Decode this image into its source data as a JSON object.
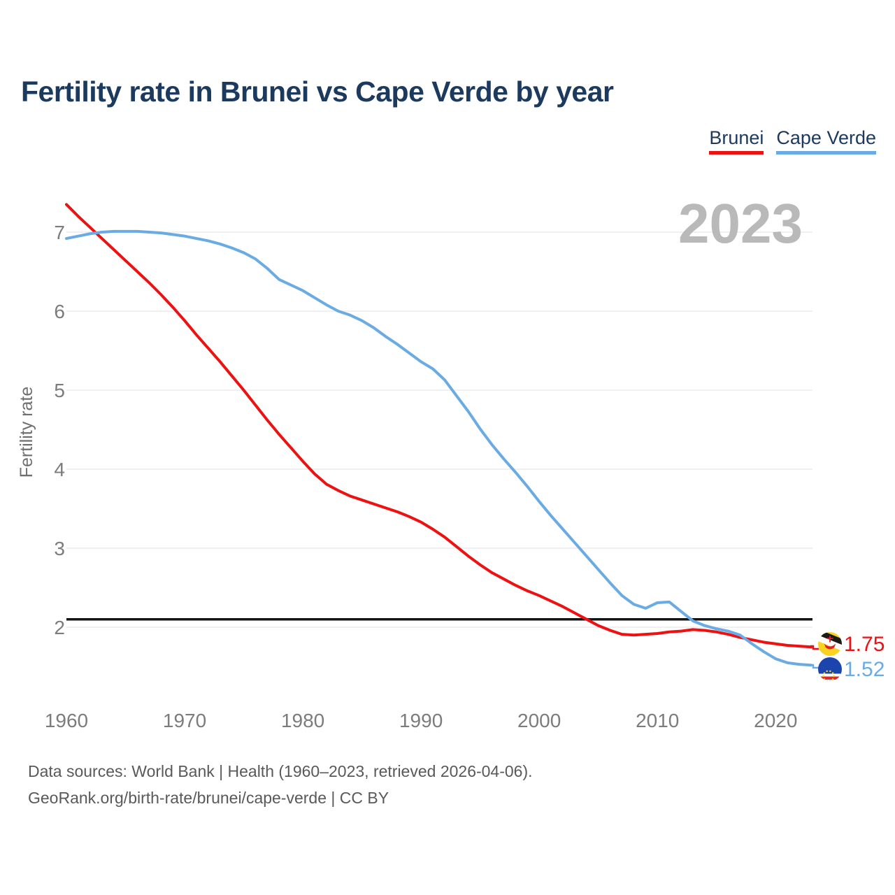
{
  "title": "Fertility rate in Brunei vs Cape Verde by year",
  "watermark": "2023",
  "legend": [
    {
      "label": "Brunei",
      "color": "#ee1111"
    },
    {
      "label": "Cape Verde",
      "color": "#6aabe4"
    }
  ],
  "end_labels": {
    "brunei": "1.75",
    "cape_verde": "1.52"
  },
  "footer": {
    "line1": "Data sources: World Bank | Health (1960–2023, retrieved 2026-04-06).",
    "line2": "GeoRank.org/birth-rate/brunei/cape-verde | CC BY"
  },
  "icons": {
    "brunei": "brunei-flag-icon",
    "cape_verde": "cape-verde-flag-icon"
  },
  "colors": {
    "title": "#1c3a5e",
    "axis_text": "#7c7c7c",
    "gridline": "#ececec",
    "watermark": "#b9b9b9",
    "replacement_line": "#141414",
    "footer_text": "#595959"
  },
  "chart_data": {
    "type": "line",
    "title": "Fertility rate in Brunei vs Cape Verde by year",
    "xlabel": "",
    "ylabel": "Fertility rate",
    "grid": "horizontal",
    "legend_position": "top-right",
    "xlim": [
      1960,
      2023
    ],
    "ylim": [
      1.4,
      7.5
    ],
    "x_ticks": [
      1960,
      1970,
      1980,
      1990,
      2000,
      2010,
      2020
    ],
    "y_ticks": [
      2,
      3,
      4,
      5,
      6,
      7
    ],
    "reference_line": {
      "value": 2.1,
      "color": "#141414"
    },
    "x": [
      1960,
      1961,
      1962,
      1963,
      1964,
      1965,
      1966,
      1967,
      1968,
      1969,
      1970,
      1971,
      1972,
      1973,
      1974,
      1975,
      1976,
      1977,
      1978,
      1979,
      1980,
      1981,
      1982,
      1983,
      1984,
      1985,
      1986,
      1987,
      1988,
      1989,
      1990,
      1991,
      1992,
      1993,
      1994,
      1995,
      1996,
      1997,
      1998,
      1999,
      2000,
      2001,
      2002,
      2003,
      2004,
      2005,
      2006,
      2007,
      2008,
      2009,
      2010,
      2011,
      2012,
      2013,
      2014,
      2015,
      2016,
      2017,
      2018,
      2019,
      2020,
      2021,
      2022,
      2023
    ],
    "series": [
      {
        "name": "Brunei",
        "color": "#ee1111",
        "final_value": 1.75,
        "values": [
          7.35,
          7.2,
          7.06,
          6.92,
          6.78,
          6.64,
          6.5,
          6.36,
          6.21,
          6.05,
          5.88,
          5.7,
          5.53,
          5.36,
          5.18,
          5.0,
          4.81,
          4.62,
          4.44,
          4.27,
          4.1,
          3.94,
          3.81,
          3.73,
          3.66,
          3.61,
          3.56,
          3.51,
          3.46,
          3.4,
          3.33,
          3.24,
          3.14,
          3.02,
          2.9,
          2.79,
          2.69,
          2.61,
          2.53,
          2.46,
          2.4,
          2.33,
          2.26,
          2.18,
          2.1,
          2.02,
          1.96,
          1.91,
          1.9,
          1.91,
          1.92,
          1.94,
          1.95,
          1.97,
          1.96,
          1.94,
          1.91,
          1.87,
          1.84,
          1.81,
          1.79,
          1.77,
          1.76,
          1.75
        ]
      },
      {
        "name": "Cape Verde",
        "color": "#6aabe4",
        "final_value": 1.52,
        "values": [
          6.92,
          6.95,
          6.98,
          7.0,
          7.01,
          7.01,
          7.01,
          7.0,
          6.99,
          6.97,
          6.95,
          6.92,
          6.89,
          6.85,
          6.8,
          6.74,
          6.66,
          6.54,
          6.4,
          6.33,
          6.26,
          6.17,
          6.08,
          6.0,
          5.95,
          5.88,
          5.79,
          5.68,
          5.58,
          5.47,
          5.36,
          5.27,
          5.13,
          4.93,
          4.73,
          4.51,
          4.31,
          4.13,
          3.96,
          3.78,
          3.59,
          3.41,
          3.24,
          3.07,
          2.9,
          2.73,
          2.56,
          2.4,
          2.29,
          2.24,
          2.31,
          2.32,
          2.2,
          2.08,
          2.02,
          1.98,
          1.95,
          1.9,
          1.79,
          1.69,
          1.6,
          1.55,
          1.53,
          1.52
        ]
      }
    ]
  }
}
